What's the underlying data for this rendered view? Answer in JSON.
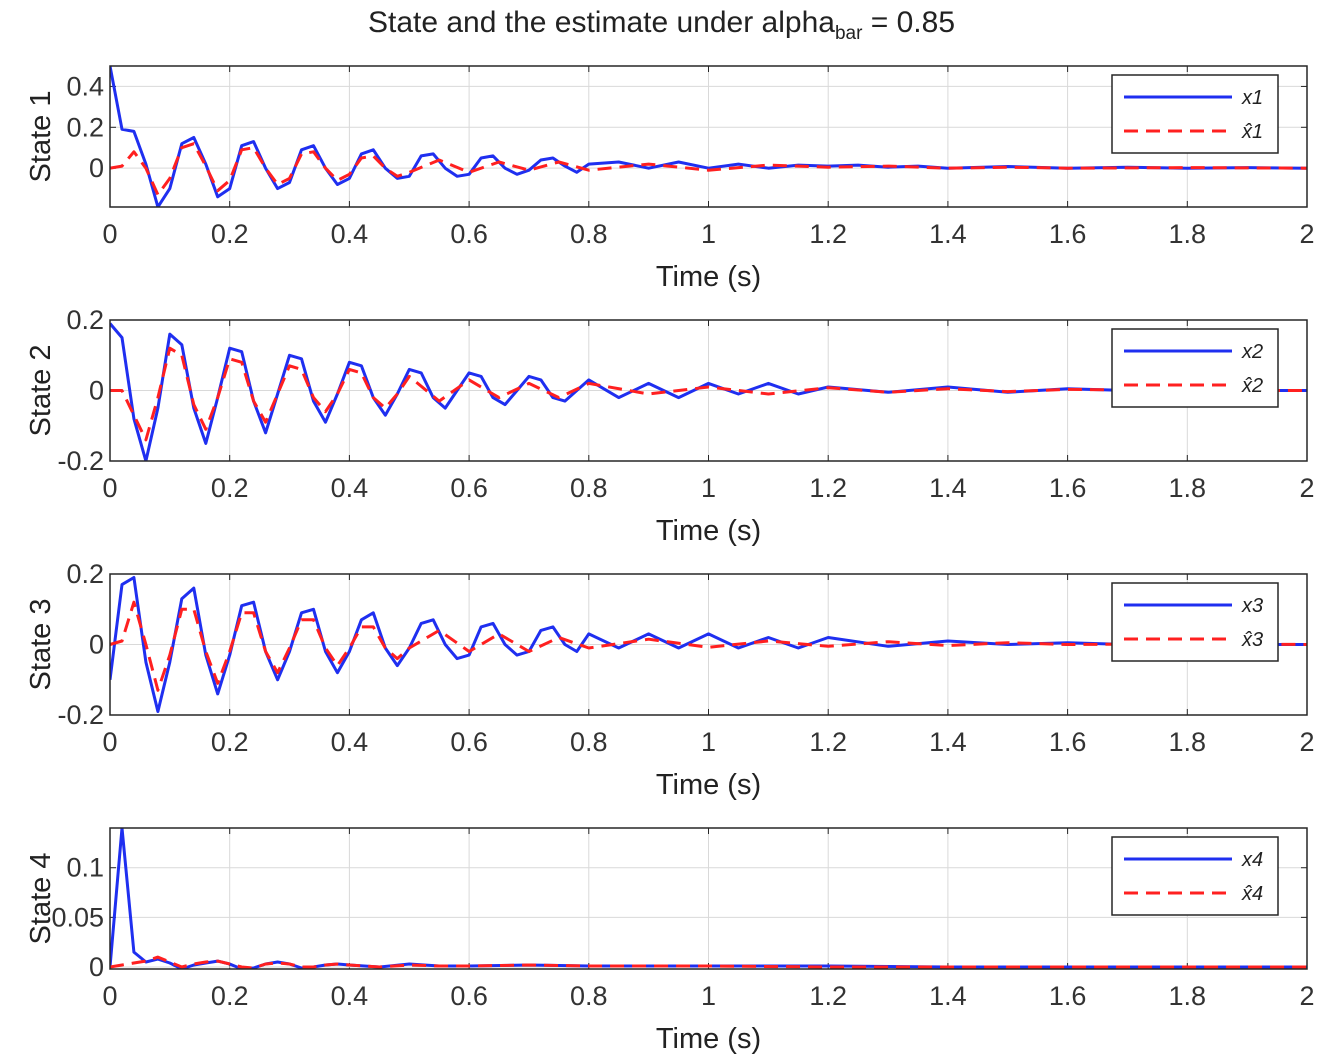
{
  "figure": {
    "title_main": "State and the estimate under alpha",
    "title_sub": "bar",
    "title_tail": " = 0.85"
  },
  "colors": {
    "true_state": "#1f2ff0",
    "estimate": "#ff2020",
    "grid": "#d9d9d9",
    "axes": "#262626"
  },
  "chart_data": [
    {
      "type": "line",
      "ylabel": "State 1",
      "xlabel": "Time (s)",
      "xlim": [
        0,
        2
      ],
      "ylim": [
        -0.19,
        0.5
      ],
      "xticks": [
        "0",
        "0.2",
        "0.4",
        "0.6",
        "0.8",
        "1",
        "1.2",
        "1.4",
        "1.6",
        "1.8",
        "2"
      ],
      "yticks": [
        {
          "v": 0,
          "label": "0"
        },
        {
          "v": 0.2,
          "label": "0.2"
        },
        {
          "v": 0.4,
          "label": "0.4"
        }
      ],
      "grid": true,
      "legend_position": "top-right",
      "series": [
        {
          "name": "x1",
          "style": "solid",
          "x": [
            0,
            0.02,
            0.04,
            0.06,
            0.08,
            0.1,
            0.12,
            0.14,
            0.16,
            0.18,
            0.2,
            0.22,
            0.24,
            0.26,
            0.28,
            0.3,
            0.32,
            0.34,
            0.36,
            0.38,
            0.4,
            0.42,
            0.44,
            0.46,
            0.48,
            0.5,
            0.52,
            0.54,
            0.56,
            0.58,
            0.6,
            0.62,
            0.64,
            0.66,
            0.68,
            0.7,
            0.72,
            0.74,
            0.76,
            0.78,
            0.8,
            0.85,
            0.9,
            0.95,
            1.0,
            1.05,
            1.1,
            1.15,
            1.2,
            1.25,
            1.3,
            1.35,
            1.4,
            1.5,
            1.6,
            1.7,
            1.8,
            1.9,
            2.0
          ],
          "y": [
            0.5,
            0.19,
            0.18,
            0.02,
            -0.19,
            -0.1,
            0.12,
            0.15,
            0.02,
            -0.14,
            -0.1,
            0.11,
            0.13,
            0.0,
            -0.1,
            -0.07,
            0.09,
            0.11,
            0.0,
            -0.08,
            -0.05,
            0.07,
            0.09,
            0.0,
            -0.05,
            -0.04,
            0.06,
            0.07,
            0.0,
            -0.04,
            -0.03,
            0.05,
            0.06,
            0.0,
            -0.03,
            -0.01,
            0.04,
            0.05,
            0.01,
            -0.02,
            0.02,
            0.03,
            0.0,
            0.03,
            0.0,
            0.02,
            0.0,
            0.015,
            0.01,
            0.015,
            0.005,
            0.01,
            0.0,
            0.008,
            0.0,
            0.005,
            0.0,
            0.003,
            0.0
          ]
        },
        {
          "name": "x̂1",
          "style": "dashed",
          "x": [
            0,
            0.02,
            0.04,
            0.06,
            0.08,
            0.1,
            0.12,
            0.14,
            0.16,
            0.18,
            0.2,
            0.22,
            0.24,
            0.26,
            0.28,
            0.3,
            0.32,
            0.34,
            0.36,
            0.38,
            0.4,
            0.42,
            0.44,
            0.46,
            0.48,
            0.5,
            0.55,
            0.6,
            0.65,
            0.7,
            0.75,
            0.8,
            0.9,
            1.0,
            1.1,
            1.2,
            1.3,
            1.4,
            1.5,
            1.6,
            1.8,
            2.0
          ],
          "y": [
            0.0,
            0.01,
            0.08,
            0.0,
            -0.13,
            -0.05,
            0.1,
            0.12,
            0.01,
            -0.11,
            -0.06,
            0.09,
            0.1,
            0.0,
            -0.08,
            -0.05,
            0.07,
            0.08,
            0.0,
            -0.06,
            -0.03,
            0.05,
            0.06,
            0.0,
            -0.04,
            -0.02,
            0.04,
            -0.02,
            0.03,
            -0.01,
            0.03,
            -0.01,
            0.02,
            -0.01,
            0.015,
            0.005,
            0.01,
            0.0,
            0.005,
            0.0,
            0.003,
            0.0
          ]
        }
      ]
    },
    {
      "type": "line",
      "ylabel": "State 2",
      "xlabel": "Time (s)",
      "xlim": [
        0,
        2
      ],
      "ylim": [
        -0.2,
        0.2
      ],
      "xticks": [
        "0",
        "0.2",
        "0.4",
        "0.6",
        "0.8",
        "1",
        "1.2",
        "1.4",
        "1.6",
        "1.8",
        "2"
      ],
      "yticks": [
        {
          "v": -0.2,
          "label": "-0.2"
        },
        {
          "v": 0,
          "label": "0"
        },
        {
          "v": 0.2,
          "label": "0.2"
        }
      ],
      "grid": true,
      "legend_position": "top-right",
      "series": [
        {
          "name": "x2",
          "style": "solid",
          "x": [
            0,
            0.02,
            0.04,
            0.06,
            0.08,
            0.1,
            0.12,
            0.14,
            0.16,
            0.18,
            0.2,
            0.22,
            0.24,
            0.26,
            0.28,
            0.3,
            0.32,
            0.34,
            0.36,
            0.38,
            0.4,
            0.42,
            0.44,
            0.46,
            0.48,
            0.5,
            0.52,
            0.54,
            0.56,
            0.58,
            0.6,
            0.62,
            0.64,
            0.66,
            0.68,
            0.7,
            0.72,
            0.74,
            0.76,
            0.78,
            0.8,
            0.85,
            0.9,
            0.95,
            1.0,
            1.05,
            1.1,
            1.15,
            1.2,
            1.3,
            1.4,
            1.5,
            1.6,
            1.7,
            1.8,
            1.9,
            2.0
          ],
          "y": [
            0.19,
            0.15,
            -0.08,
            -0.2,
            -0.05,
            0.16,
            0.13,
            -0.05,
            -0.15,
            -0.02,
            0.12,
            0.11,
            -0.03,
            -0.12,
            -0.01,
            0.1,
            0.09,
            -0.03,
            -0.09,
            -0.01,
            0.08,
            0.07,
            -0.02,
            -0.07,
            -0.01,
            0.06,
            0.05,
            -0.02,
            -0.05,
            0.0,
            0.05,
            0.04,
            -0.02,
            -0.04,
            0.0,
            0.04,
            0.03,
            -0.02,
            -0.03,
            0.0,
            0.03,
            -0.02,
            0.02,
            -0.02,
            0.02,
            -0.01,
            0.02,
            -0.01,
            0.01,
            -0.005,
            0.01,
            -0.005,
            0.005,
            0.0,
            0.003,
            0.0,
            0.0
          ]
        },
        {
          "name": "x̂2",
          "style": "dashed",
          "x": [
            0,
            0.02,
            0.04,
            0.06,
            0.08,
            0.1,
            0.12,
            0.14,
            0.16,
            0.18,
            0.2,
            0.22,
            0.24,
            0.26,
            0.28,
            0.3,
            0.32,
            0.34,
            0.36,
            0.38,
            0.4,
            0.42,
            0.44,
            0.46,
            0.48,
            0.5,
            0.55,
            0.6,
            0.65,
            0.7,
            0.75,
            0.8,
            0.9,
            1.0,
            1.1,
            1.2,
            1.3,
            1.4,
            1.5,
            1.6,
            1.8,
            2.0
          ],
          "y": [
            0.0,
            0.0,
            -0.07,
            -0.14,
            -0.02,
            0.12,
            0.1,
            -0.04,
            -0.11,
            -0.02,
            0.09,
            0.08,
            -0.03,
            -0.09,
            -0.01,
            0.07,
            0.06,
            -0.02,
            -0.06,
            -0.01,
            0.06,
            0.05,
            -0.02,
            -0.05,
            -0.01,
            0.04,
            -0.03,
            0.03,
            -0.02,
            0.02,
            -0.02,
            0.02,
            -0.01,
            0.01,
            -0.01,
            0.008,
            -0.005,
            0.005,
            -0.003,
            0.003,
            0.0,
            0.0
          ]
        }
      ]
    },
    {
      "type": "line",
      "ylabel": "State 3",
      "xlabel": "Time (s)",
      "xlim": [
        0,
        2
      ],
      "ylim": [
        -0.2,
        0.2
      ],
      "xticks": [
        "0",
        "0.2",
        "0.4",
        "0.6",
        "0.8",
        "1",
        "1.2",
        "1.4",
        "1.6",
        "1.8",
        "2"
      ],
      "yticks": [
        {
          "v": -0.2,
          "label": "-0.2"
        },
        {
          "v": 0,
          "label": "0"
        },
        {
          "v": 0.2,
          "label": "0.2"
        }
      ],
      "grid": true,
      "legend_position": "top-right",
      "series": [
        {
          "name": "x3",
          "style": "solid",
          "x": [
            0,
            0.02,
            0.04,
            0.06,
            0.08,
            0.1,
            0.12,
            0.14,
            0.16,
            0.18,
            0.2,
            0.22,
            0.24,
            0.26,
            0.28,
            0.3,
            0.32,
            0.34,
            0.36,
            0.38,
            0.4,
            0.42,
            0.44,
            0.46,
            0.48,
            0.5,
            0.52,
            0.54,
            0.56,
            0.58,
            0.6,
            0.62,
            0.64,
            0.66,
            0.68,
            0.7,
            0.72,
            0.74,
            0.76,
            0.78,
            0.8,
            0.85,
            0.9,
            0.95,
            1.0,
            1.05,
            1.1,
            1.15,
            1.2,
            1.3,
            1.4,
            1.5,
            1.6,
            1.7,
            1.8,
            1.9,
            2.0
          ],
          "y": [
            -0.1,
            0.17,
            0.19,
            -0.05,
            -0.19,
            -0.05,
            0.13,
            0.16,
            -0.03,
            -0.14,
            -0.03,
            0.11,
            0.12,
            -0.02,
            -0.1,
            -0.02,
            0.09,
            0.1,
            -0.02,
            -0.08,
            -0.02,
            0.07,
            0.09,
            -0.01,
            -0.06,
            -0.01,
            0.06,
            0.07,
            0.0,
            -0.04,
            -0.03,
            0.05,
            0.06,
            0.0,
            -0.03,
            -0.02,
            0.04,
            0.05,
            0.0,
            -0.02,
            0.03,
            -0.01,
            0.03,
            -0.01,
            0.03,
            -0.01,
            0.02,
            -0.01,
            0.02,
            -0.005,
            0.01,
            0.0,
            0.005,
            0.0,
            0.003,
            0.0,
            0.0
          ]
        },
        {
          "name": "x̂3",
          "style": "dashed",
          "x": [
            0,
            0.02,
            0.04,
            0.06,
            0.08,
            0.1,
            0.12,
            0.14,
            0.16,
            0.18,
            0.2,
            0.22,
            0.24,
            0.26,
            0.28,
            0.3,
            0.32,
            0.34,
            0.36,
            0.38,
            0.4,
            0.42,
            0.44,
            0.46,
            0.48,
            0.5,
            0.55,
            0.6,
            0.65,
            0.7,
            0.75,
            0.8,
            0.9,
            1.0,
            1.1,
            1.2,
            1.3,
            1.4,
            1.5,
            1.6,
            1.8,
            2.0
          ],
          "y": [
            0.0,
            0.01,
            0.12,
            0.0,
            -0.13,
            -0.03,
            0.1,
            0.1,
            -0.02,
            -0.11,
            -0.02,
            0.09,
            0.09,
            -0.02,
            -0.08,
            -0.01,
            0.07,
            0.07,
            -0.01,
            -0.06,
            -0.01,
            0.05,
            0.05,
            -0.01,
            -0.04,
            -0.01,
            0.04,
            -0.02,
            0.03,
            -0.02,
            0.02,
            -0.01,
            0.015,
            -0.008,
            0.01,
            -0.005,
            0.008,
            -0.003,
            0.005,
            0.0,
            0.002,
            0.0
          ]
        }
      ]
    },
    {
      "type": "line",
      "ylabel": "State 4",
      "xlabel": "Time (s)",
      "xlim": [
        0,
        2
      ],
      "ylim": [
        -0.002,
        0.14
      ],
      "xticks": [
        "0",
        "0.2",
        "0.4",
        "0.6",
        "0.8",
        "1",
        "1.2",
        "1.4",
        "1.6",
        "1.8",
        "2"
      ],
      "yticks": [
        {
          "v": 0,
          "label": "0"
        },
        {
          "v": 0.05,
          "label": "0.05"
        },
        {
          "v": 0.1,
          "label": "0.1"
        }
      ],
      "grid": true,
      "legend_position": "top-right",
      "series": [
        {
          "name": "x4",
          "style": "solid",
          "x": [
            0,
            0.02,
            0.04,
            0.06,
            0.08,
            0.1,
            0.12,
            0.14,
            0.16,
            0.18,
            0.2,
            0.22,
            0.24,
            0.26,
            0.28,
            0.3,
            0.32,
            0.34,
            0.36,
            0.38,
            0.4,
            0.45,
            0.5,
            0.55,
            0.6,
            0.7,
            0.8,
            0.9,
            1.0,
            1.2,
            1.4,
            1.6,
            1.8,
            2.0
          ],
          "y": [
            0.0,
            0.14,
            0.015,
            0.005,
            0.008,
            0.004,
            -0.002,
            0.002,
            0.004,
            0.006,
            0.003,
            -0.002,
            -0.001,
            0.003,
            0.005,
            0.003,
            -0.001,
            0.0,
            0.002,
            0.003,
            0.002,
            0.0,
            0.003,
            0.001,
            0.001,
            0.002,
            0.001,
            0.001,
            0.001,
            0.001,
            0.0,
            0.0,
            0.0,
            0.0
          ]
        },
        {
          "name": "x̂4",
          "style": "dashed",
          "x": [
            0,
            0.02,
            0.04,
            0.06,
            0.08,
            0.1,
            0.12,
            0.14,
            0.16,
            0.18,
            0.2,
            0.22,
            0.24,
            0.26,
            0.28,
            0.3,
            0.32,
            0.34,
            0.36,
            0.38,
            0.4,
            0.45,
            0.5,
            0.55,
            0.6,
            0.7,
            0.8,
            0.9,
            1.0,
            1.2,
            1.4,
            1.6,
            1.8,
            2.0
          ],
          "y": [
            0.0,
            0.002,
            0.004,
            0.006,
            0.01,
            0.005,
            0.0,
            0.003,
            0.005,
            0.006,
            0.003,
            0.0,
            -0.001,
            0.003,
            0.004,
            0.003,
            0.0,
            0.0,
            0.002,
            0.003,
            0.002,
            0.0,
            0.002,
            0.001,
            0.001,
            0.002,
            0.001,
            0.001,
            0.001,
            0.0,
            0.0,
            0.0,
            0.0,
            0.0
          ]
        }
      ]
    }
  ]
}
